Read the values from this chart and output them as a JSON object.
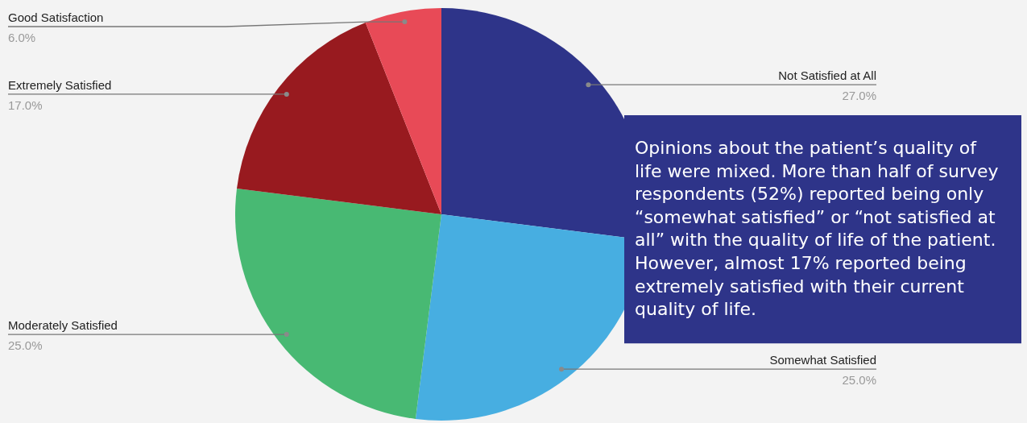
{
  "chart_data": {
    "type": "pie",
    "categories": [
      "Not Satisfied at All",
      "Somewhat Satisfied",
      "Moderately Satisfied",
      "Extremely Satisfied",
      "Good Satisfaction"
    ],
    "values": [
      27,
      25,
      25,
      17,
      6
    ],
    "colors": [
      "#2e3489",
      "#47aee1",
      "#48b973",
      "#981a1f",
      "#e84a57"
    ],
    "value_labels": [
      "27.0%",
      "25.0%",
      "25.0%",
      "17.0%",
      "6.0%"
    ],
    "annotations": [
      "Opinions about the patient’s quality of life were mixed. More than half of survey respondents (52%) reported being only “somewhat satisfied” or “not satisfied at all” with the quality of life of the patient. However, almost 17% reported being extremely satisfied with their current quality of life."
    ]
  }
}
